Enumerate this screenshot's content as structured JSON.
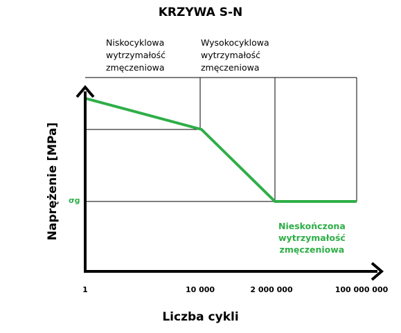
{
  "title": "KRZYWA S-N",
  "regions": {
    "low_cycle": [
      "Niskocyklowa",
      "wytrzymałość",
      "zmęczeniowa"
    ],
    "high_cycle": [
      "Wysokocyklowa",
      "wytrzymałość",
      "zmęczeniowa"
    ]
  },
  "axes": {
    "y_label": "Naprężenie [MPa]",
    "x_label": "Liczba cykli",
    "x_ticks": [
      "1",
      "10 000",
      "2 000 000",
      "100 000 000"
    ],
    "sigma_label": "σg"
  },
  "endurance_label": [
    "Nieskończona",
    "wytrzymałość",
    "zmęczeniowa"
  ],
  "colors": {
    "curve": "#2fae48",
    "axis": "#000000",
    "grid": "#000000"
  }
}
